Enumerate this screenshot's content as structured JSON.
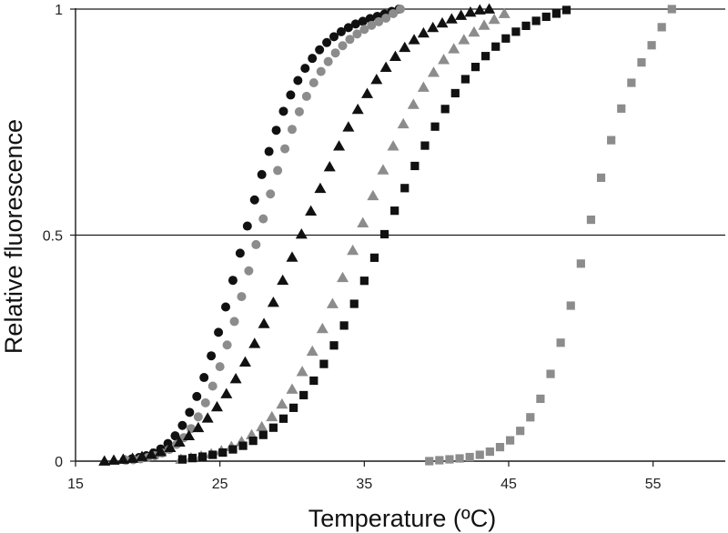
{
  "chart_data": {
    "type": "scatter",
    "title": "",
    "xlabel": "Temperature (ºC)",
    "ylabel": "Relative fluorescence",
    "xlim": [
      15,
      60
    ],
    "ylim": [
      0,
      1
    ],
    "x_ticks": [
      15,
      25,
      35,
      45,
      55
    ],
    "x_tick_labels": [
      "15",
      "25",
      "35",
      "45",
      "55"
    ],
    "y_ticks": [
      0,
      0.5,
      1
    ],
    "y_tick_labels": [
      "0",
      "0.5",
      "1"
    ],
    "grid": "horizontal",
    "legend": "none",
    "series": [
      {
        "marker": "circle",
        "color": "#111111",
        "x": [
          18.4,
          18.9,
          19.4,
          19.9,
          20.4,
          20.9,
          21.4,
          21.9,
          22.4,
          22.9,
          23.4,
          23.9,
          24.4,
          24.9,
          25.4,
          25.9,
          26.4,
          26.9,
          27.4,
          27.9,
          28.4,
          28.9,
          29.4,
          29.9,
          30.4,
          30.9,
          31.4,
          31.9,
          32.4,
          32.9,
          33.4,
          33.9,
          34.4,
          34.9,
          35.4,
          35.9,
          36.4,
          36.9,
          37.4
        ],
        "y": [
          0.003,
          0.005,
          0.008,
          0.012,
          0.018,
          0.027,
          0.039,
          0.056,
          0.079,
          0.108,
          0.143,
          0.185,
          0.233,
          0.285,
          0.341,
          0.4,
          0.46,
          0.52,
          0.578,
          0.634,
          0.685,
          0.732,
          0.774,
          0.81,
          0.842,
          0.869,
          0.891,
          0.91,
          0.926,
          0.939,
          0.95,
          0.959,
          0.967,
          0.973,
          0.979,
          0.984,
          0.989,
          0.995,
          1.0
        ]
      },
      {
        "marker": "circle",
        "color": "#8c8c8c",
        "x": [
          18.5,
          19,
          19.5,
          20,
          20.5,
          21,
          21.5,
          22,
          22.5,
          23,
          23.5,
          24,
          24.5,
          25,
          25.5,
          26,
          26.5,
          27,
          27.5,
          28,
          28.5,
          29,
          29.5,
          30,
          30.5,
          31,
          31.5,
          32,
          32.5,
          33,
          33.5,
          34,
          34.5,
          35,
          35.5,
          36,
          36.5,
          37,
          37.5
        ],
        "y": [
          0.002,
          0.003,
          0.005,
          0.008,
          0.012,
          0.018,
          0.026,
          0.037,
          0.052,
          0.072,
          0.098,
          0.129,
          0.166,
          0.209,
          0.257,
          0.309,
          0.364,
          0.421,
          0.479,
          0.536,
          0.591,
          0.643,
          0.691,
          0.734,
          0.773,
          0.807,
          0.837,
          0.862,
          0.884,
          0.903,
          0.919,
          0.933,
          0.945,
          0.955,
          0.964,
          0.972,
          0.98,
          0.99,
          1.0
        ]
      },
      {
        "marker": "triangle",
        "color": "#111111",
        "x": [
          17,
          17.65,
          18.3,
          18.95,
          19.6,
          20.25,
          20.9,
          21.55,
          22.2,
          22.85,
          23.5,
          24.15,
          24.8,
          25.45,
          26.1,
          26.75,
          27.4,
          28.05,
          28.7,
          29.35,
          30,
          30.65,
          31.3,
          31.95,
          32.6,
          33.25,
          33.9,
          34.55,
          35.2,
          35.85,
          36.5,
          37.15,
          37.8,
          38.45,
          39.1,
          39.75,
          40.4,
          41.05,
          41.7,
          42.35,
          43,
          43.65
        ],
        "y": [
          0.0,
          0.002,
          0.004,
          0.006,
          0.01,
          0.015,
          0.021,
          0.03,
          0.042,
          0.056,
          0.074,
          0.095,
          0.12,
          0.149,
          0.182,
          0.219,
          0.26,
          0.304,
          0.351,
          0.4,
          0.451,
          0.502,
          0.553,
          0.603,
          0.651,
          0.697,
          0.739,
          0.778,
          0.813,
          0.844,
          0.871,
          0.895,
          0.915,
          0.932,
          0.947,
          0.959,
          0.969,
          0.978,
          0.986,
          0.993,
          0.998,
          1.0
        ]
      },
      {
        "marker": "triangle",
        "color": "#8c8c8c",
        "x": [
          22.3,
          23.0,
          23.7,
          24.4,
          25.1,
          25.8,
          26.5,
          27.2,
          27.9,
          28.6,
          29.3,
          30.0,
          30.7,
          31.4,
          32.1,
          32.8,
          33.5,
          34.2,
          34.9,
          35.6,
          36.3,
          37.0,
          37.7,
          38.4,
          39.1,
          39.8,
          40.5,
          41.2,
          41.9,
          42.6,
          43.3,
          44.0,
          44.7
        ],
        "y": [
          0.004,
          0.007,
          0.011,
          0.016,
          0.023,
          0.032,
          0.043,
          0.058,
          0.076,
          0.098,
          0.126,
          0.159,
          0.198,
          0.243,
          0.293,
          0.348,
          0.406,
          0.466,
          0.527,
          0.587,
          0.644,
          0.697,
          0.746,
          0.789,
          0.827,
          0.86,
          0.888,
          0.912,
          0.932,
          0.949,
          0.964,
          0.977,
          0.99
        ]
      },
      {
        "marker": "square",
        "color": "#111111",
        "x": [
          22.4,
          23.1,
          23.8,
          24.5,
          25.2,
          25.9,
          26.6,
          27.3,
          28.0,
          28.7,
          29.4,
          30.1,
          30.8,
          31.5,
          32.2,
          32.9,
          33.6,
          34.3,
          35.0,
          35.7,
          36.4,
          37.1,
          37.8,
          38.5,
          39.2,
          39.9,
          40.6,
          41.3,
          42.0,
          42.7,
          43.4,
          44.1,
          44.8,
          45.5,
          46.2,
          46.9,
          47.6,
          48.3,
          49.0
        ],
        "y": [
          0.004,
          0.007,
          0.01,
          0.014,
          0.019,
          0.026,
          0.034,
          0.045,
          0.058,
          0.074,
          0.094,
          0.118,
          0.146,
          0.178,
          0.215,
          0.256,
          0.3,
          0.348,
          0.399,
          0.45,
          0.502,
          0.554,
          0.604,
          0.653,
          0.698,
          0.74,
          0.779,
          0.814,
          0.845,
          0.872,
          0.896,
          0.917,
          0.935,
          0.95,
          0.963,
          0.974,
          0.983,
          0.99,
          0.998
        ]
      },
      {
        "marker": "square",
        "color": "#8c8c8c",
        "x": [
          39.5,
          40.2,
          40.9,
          41.6,
          42.3,
          43.0,
          43.7,
          44.4,
          45.1,
          45.8,
          46.5,
          47.2,
          47.9,
          48.6,
          49.3,
          50.0,
          50.7,
          51.4,
          52.1,
          52.8,
          53.5,
          54.2,
          54.9,
          55.6,
          56.3
        ],
        "y": [
          0.0,
          0.002,
          0.004,
          0.006,
          0.009,
          0.014,
          0.021,
          0.031,
          0.046,
          0.067,
          0.097,
          0.138,
          0.193,
          0.262,
          0.344,
          0.437,
          0.534,
          0.627,
          0.71,
          0.78,
          0.837,
          0.882,
          0.92,
          0.96,
          1.0
        ]
      }
    ]
  }
}
